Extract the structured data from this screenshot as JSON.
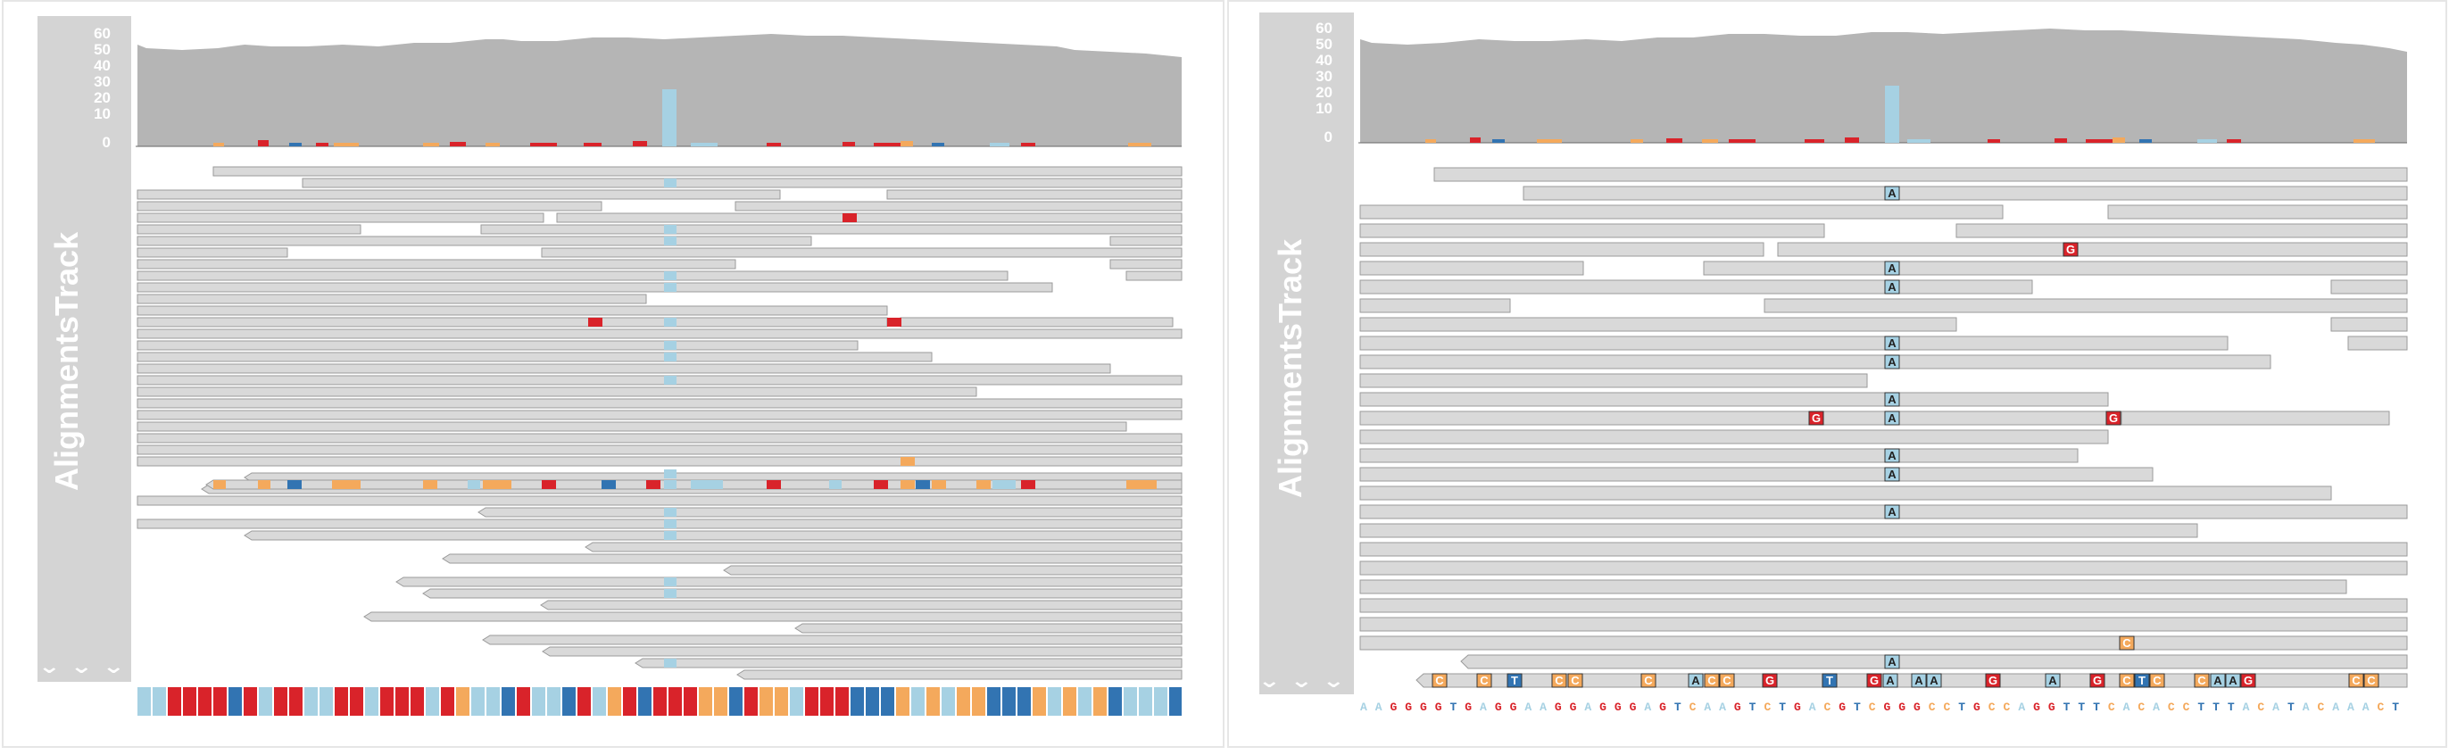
{
  "app": {
    "track_title": "AlignmentsTrack",
    "chevrons": [
      "⌄",
      "⌄",
      "⌄"
    ]
  },
  "left_panel": {
    "coverage_axis_ticks": [
      "60",
      "50",
      "40",
      "30",
      "20",
      "10",
      "0"
    ],
    "colors": {
      "coverage": "#b5b5b5",
      "read": "#d9d9d9",
      "read_border": "#9a9a9a",
      "A": "#a6d1e3",
      "C": "#f4a95c",
      "G": "#d9232a",
      "T": "#3274b2"
    }
  },
  "right_panel": {
    "coverage_axis_ticks": [
      "60",
      "50",
      "40",
      "30",
      "20",
      "10",
      "0"
    ],
    "reference_sequence": "AAGGGGTGAGGAAGGAGGGAGTCAAGTCTGACGTCGGGCCTGCCAGGTTTCACACCTTTACATACAAACT"
  }
}
